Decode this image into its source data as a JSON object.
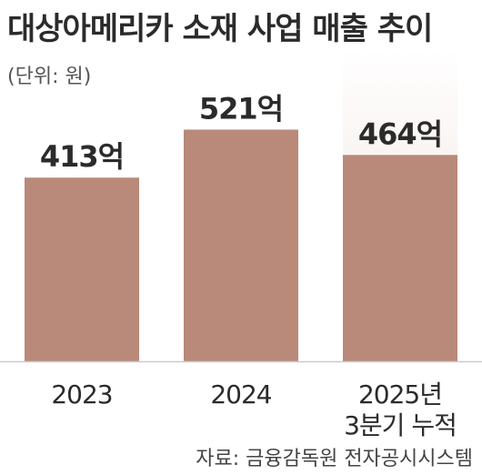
{
  "title": "대상아메리카 소재 사업 매출 추이",
  "unit_note": "(단위: 원)",
  "source": "자료: 금융감독원 전자공시시스템",
  "colors": {
    "bar": "#b9897a",
    "bar_highlight_fade": "#efe0da",
    "baseline": "#c9c9c9",
    "text": "#2b2b2b"
  },
  "chart_data": {
    "type": "bar",
    "categories": [
      "2023",
      "2024",
      "2025년\n3분기 누적"
    ],
    "values": [
      413,
      521,
      464
    ],
    "value_labels": [
      "413억",
      "521억",
      "464억"
    ],
    "unit": "억 원",
    "ylim": [
      0,
      700
    ],
    "highlight_index": 2,
    "grid": false
  }
}
